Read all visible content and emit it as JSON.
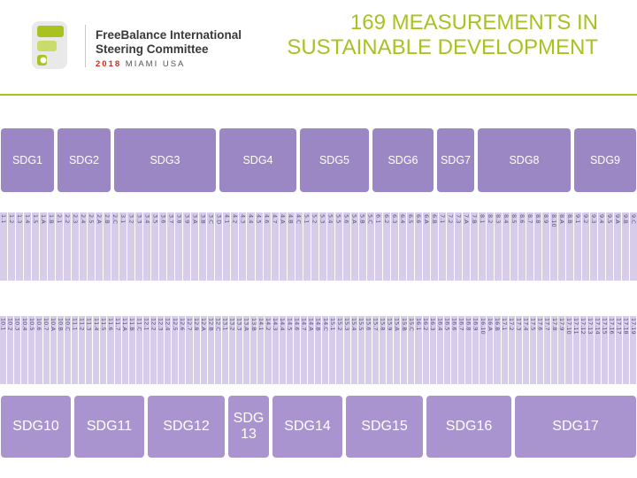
{
  "header": {
    "org_line1": "FreeBalance International",
    "org_line2": "Steering Committee",
    "event_year": "2018",
    "event_place": "MIAMI USA",
    "title_line1": "169 MEASUREMENTS IN",
    "title_line2": "SUSTAINABLE DEVELOPMENT"
  },
  "colors": {
    "accent": "#a9c21f",
    "goal_box": "#9b87c3",
    "target_cell": "#d7cdea",
    "logo_red": "#d52b1e"
  },
  "goals_top": [
    "SDG1",
    "SDG2",
    "SDG3",
    "SDG4",
    "SDG5",
    "SDG6",
    "SDG7",
    "SDG8",
    "SDG9"
  ],
  "goals_bottom": [
    "SDG10",
    "SDG11",
    "SDG12",
    "SDG 13",
    "SDG14",
    "SDG15",
    "SDG16",
    "SDG17"
  ],
  "targets_top": [
    "1.1",
    "1.2",
    "1.3",
    "1.4",
    "1.5",
    "1.A",
    "1.B",
    "2.1",
    "2.2",
    "2.3",
    "2.4",
    "2.5",
    "2.A",
    "2.B",
    "2.C",
    "3.1",
    "3.2",
    "3.3",
    "3.4",
    "3.5",
    "3.6",
    "3.7",
    "3.8",
    "3.9",
    "3.A",
    "3.B",
    "3.C",
    "3.D",
    "4.1",
    "4.2",
    "4.3",
    "4.4",
    "4.5",
    "4.6",
    "4.7",
    "4.A",
    "4.B",
    "4.C",
    "5.1",
    "5.2",
    "5.3",
    "5.4",
    "5.5",
    "5.6",
    "5.A",
    "5.B",
    "5.C",
    "6.1",
    "6.2",
    "6.3",
    "6.4",
    "6.5",
    "6.6",
    "6.A",
    "6.B",
    "7.1",
    "7.2",
    "7.3",
    "7.A",
    "7.B",
    "8.1",
    "8.2",
    "8.3",
    "8.4",
    "8.5",
    "8.6",
    "8.7",
    "8.8",
    "8.9",
    "8.10",
    "8.A",
    "8.B",
    "9.1",
    "9.2",
    "9.3",
    "9.4",
    "9.5",
    "9.A",
    "9.B",
    "9.C"
  ],
  "targets_bottom": [
    "10.1",
    "10.2",
    "10.3",
    "10.4",
    "10.5",
    "10.6",
    "10.7",
    "10.A",
    "10.B",
    "10.C",
    "11.1",
    "11.2",
    "11.3",
    "11.4",
    "11.5",
    "11.6",
    "11.7",
    "11.A",
    "11.B",
    "11.C",
    "12.1",
    "12.2",
    "12.3",
    "12.4",
    "12.5",
    "12.6",
    "12.7",
    "12.8",
    "12.A",
    "12.B",
    "12.C",
    "13.1",
    "13.2",
    "13.3",
    "13.A",
    "13.B",
    "14.1",
    "14.2",
    "14.3",
    "14.4",
    "14.5",
    "14.6",
    "14.7",
    "14.A",
    "14.B",
    "14.C",
    "15.1",
    "15.2",
    "15.3",
    "15.4",
    "15.5",
    "15.6",
    "15.7",
    "15.8",
    "15.9",
    "15.A",
    "15.B",
    "15.C",
    "16.1",
    "16.2",
    "16.3",
    "16.4",
    "16.5",
    "16.6",
    "16.7",
    "16.8",
    "16.9",
    "16.10",
    "16.A",
    "16.B",
    "17.1",
    "17.2",
    "17.3",
    "17.4",
    "17.5",
    "17.6",
    "17.7",
    "17.8",
    "17.9",
    "17.10",
    "17.11",
    "17.12",
    "17.13",
    "17.14",
    "17.15",
    "17.16",
    "17.17",
    "17.18",
    "17.19"
  ]
}
